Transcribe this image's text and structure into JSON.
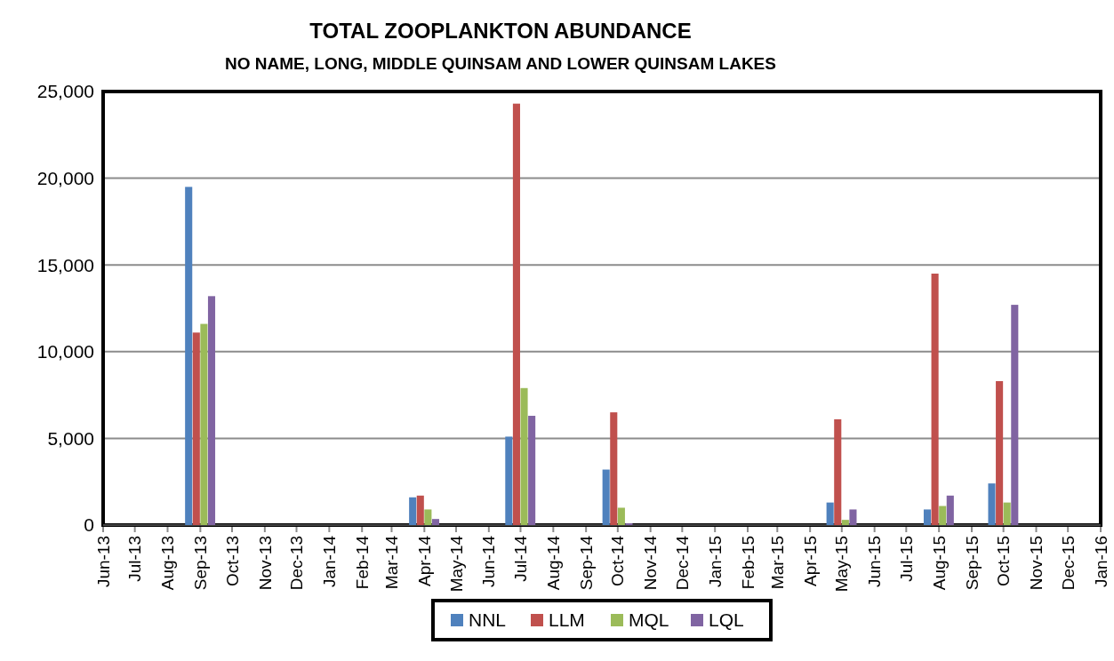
{
  "chart_data": {
    "type": "bar",
    "title": "TOTAL ZOOPLANKTON ABUNDANCE",
    "subtitle": "NO NAME, LONG, MIDDLE QUINSAM AND LOWER QUINSAM LAKES",
    "x": [
      "2013-09",
      "2014-04",
      "2014-07",
      "2014-10",
      "2015-05",
      "2015-08",
      "2015-10"
    ],
    "series": [
      {
        "name": "NNL",
        "color": "#4f81bd",
        "values": [
          19500,
          1600,
          5100,
          3200,
          1300,
          900,
          2400
        ]
      },
      {
        "name": "LLM",
        "color": "#c0504d",
        "values": [
          11100,
          1700,
          24300,
          6500,
          6100,
          14500,
          8300
        ]
      },
      {
        "name": "MQL",
        "color": "#9bbb59",
        "values": [
          11600,
          900,
          7900,
          1000,
          300,
          1100,
          1300
        ]
      },
      {
        "name": "LQL",
        "color": "#8064a2",
        "values": [
          13200,
          350,
          6300,
          100,
          900,
          1700,
          12700
        ]
      }
    ],
    "xlim": [
      "2013-06",
      "2016-01"
    ],
    "xticks": [
      {
        "value": "2013-06",
        "label": "Jun-13"
      },
      {
        "value": "2013-07",
        "label": "Jul-13"
      },
      {
        "value": "2013-08",
        "label": "Aug-13"
      },
      {
        "value": "2013-09",
        "label": "Sep-13"
      },
      {
        "value": "2013-10",
        "label": "Oct-13"
      },
      {
        "value": "2013-11",
        "label": "Nov-13"
      },
      {
        "value": "2013-12",
        "label": "Dec-13"
      },
      {
        "value": "2014-01",
        "label": "Jan-14"
      },
      {
        "value": "2014-02",
        "label": "Feb-14"
      },
      {
        "value": "2014-03",
        "label": "Mar-14"
      },
      {
        "value": "2014-04",
        "label": "Apr-14"
      },
      {
        "value": "2014-05",
        "label": "May-14"
      },
      {
        "value": "2014-06",
        "label": "Jun-14"
      },
      {
        "value": "2014-07",
        "label": "Jul-14"
      },
      {
        "value": "2014-08",
        "label": "Aug-14"
      },
      {
        "value": "2014-09",
        "label": "Sep-14"
      },
      {
        "value": "2014-10",
        "label": "Oct-14"
      },
      {
        "value": "2014-11",
        "label": "Nov-14"
      },
      {
        "value": "2014-12",
        "label": "Dec-14"
      },
      {
        "value": "2015-01",
        "label": "Jan-15"
      },
      {
        "value": "2015-02",
        "label": "Feb-15"
      },
      {
        "value": "2015-03",
        "label": "Mar-15"
      },
      {
        "value": "2015-04",
        "label": "Apr-15"
      },
      {
        "value": "2015-05",
        "label": "May-15"
      },
      {
        "value": "2015-06",
        "label": "Jun-15"
      },
      {
        "value": "2015-07",
        "label": "Jul-15"
      },
      {
        "value": "2015-08",
        "label": "Aug-15"
      },
      {
        "value": "2015-09",
        "label": "Sep-15"
      },
      {
        "value": "2015-10",
        "label": "Oct-15"
      },
      {
        "value": "2015-11",
        "label": "Nov-15"
      },
      {
        "value": "2015-12",
        "label": "Dec-15"
      },
      {
        "value": "2016-01",
        "label": "Jan-16"
      }
    ],
    "ylim": [
      0,
      25000
    ],
    "yticks": [
      {
        "value": 0,
        "label": "0"
      },
      {
        "value": 5000,
        "label": "5,000"
      },
      {
        "value": 10000,
        "label": "10,000"
      },
      {
        "value": 15000,
        "label": "15,000"
      },
      {
        "value": 20000,
        "label": "20,000"
      },
      {
        "value": 25000,
        "label": "25,000"
      }
    ],
    "grid": "y",
    "legend": "bottom"
  }
}
